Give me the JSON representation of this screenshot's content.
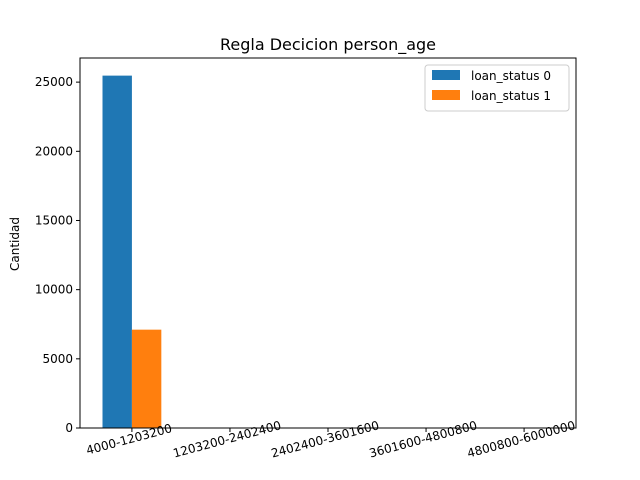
{
  "chart_data": {
    "type": "bar",
    "title": "Regla Decicion person_age",
    "xlabel": "",
    "ylabel": "Cantidad",
    "categories": [
      "4000-1203200",
      "1203200-2402400",
      "2402400-3601600",
      "3601600-4800800",
      "4800800-6000000"
    ],
    "series": [
      {
        "name": "loan_status 0",
        "values": [
          25470,
          0,
          0,
          0,
          0
        ],
        "color": "#1f77b4"
      },
      {
        "name": "loan_status 1",
        "values": [
          7108,
          0,
          0,
          0,
          0
        ],
        "color": "#ff7f0e"
      }
    ],
    "yticks": [
      0,
      5000,
      10000,
      15000,
      20000,
      25000
    ],
    "ylim": [
      0,
      26744
    ],
    "grid": false,
    "legend_position": "top-right"
  }
}
